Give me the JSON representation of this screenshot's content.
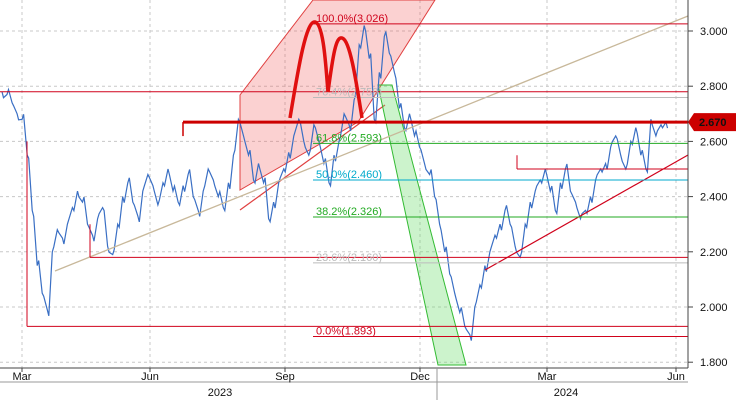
{
  "chart_data": {
    "type": "line",
    "title": "",
    "xlabel": "",
    "ylabel": "",
    "ylim": [
      1.79,
      3.09
    ],
    "x_ticks": [
      "Mar",
      "Jun",
      "Sep",
      "Dec",
      "Mar",
      "Jun"
    ],
    "year_labels": [
      "2023",
      "2024"
    ],
    "y_ticks": [
      "1.800",
      "2.000",
      "2.200",
      "2.400",
      "2.600",
      "2.800",
      "3.000"
    ],
    "last_value_badge": "2.670",
    "grid": true,
    "fibonacci_levels": [
      {
        "label": "100.0%(3.026)",
        "value": 3.026,
        "color": "#d0021b"
      },
      {
        "label": "76.4%(2.759)",
        "value": 2.759,
        "color": "#bbbbbb"
      },
      {
        "label": "61.8%(2.593)",
        "value": 2.593,
        "color": "#22aa22"
      },
      {
        "label": "50.0%(2.460)",
        "value": 2.46,
        "color": "#00aacc"
      },
      {
        "label": "38.2%(2.326)",
        "value": 2.326,
        "color": "#22aa22"
      },
      {
        "label": "23.6%(2.160)",
        "value": 2.16,
        "color": "#bbbbbb"
      },
      {
        "label": "0.0%(1.893)",
        "value": 1.893,
        "color": "#d0021b"
      }
    ],
    "horizontal_levels": [
      {
        "value": 2.78,
        "color": "#d0021b"
      },
      {
        "value": 2.67,
        "color": "#cc0000",
        "emphasis": true
      },
      {
        "value": 2.18,
        "color": "#d0021b"
      },
      {
        "value": 1.93,
        "color": "#d0021b"
      },
      {
        "value": 2.5,
        "color": "#d0021b"
      }
    ],
    "series": [
      {
        "values": [
          2.78,
          2.77,
          2.74,
          2.7,
          2.68,
          2.55,
          2.35,
          2.15,
          2.05,
          1.99,
          2.2,
          2.28,
          2.25,
          2.3,
          2.36,
          2.42,
          2.38,
          2.3,
          2.26,
          2.32,
          2.36,
          2.22,
          2.19,
          2.3,
          2.4,
          2.45,
          2.38,
          2.33,
          2.42,
          2.48,
          2.44,
          2.37,
          2.45,
          2.5,
          2.42,
          2.38,
          2.44,
          2.48,
          2.4,
          2.35,
          2.42,
          2.5,
          2.46,
          2.4,
          2.36,
          2.45,
          2.55,
          2.68,
          2.62,
          2.55,
          2.46,
          2.52,
          2.45,
          2.32,
          2.38,
          2.45,
          2.5,
          2.56,
          2.62,
          2.68,
          2.6,
          2.55,
          2.66,
          2.6,
          2.52,
          2.45,
          2.55,
          2.6,
          2.7,
          2.66,
          2.75,
          2.95,
          3.02,
          2.9,
          2.68,
          2.85,
          2.98,
          2.92,
          2.85,
          2.72,
          2.65,
          2.7,
          2.62,
          2.58,
          2.52,
          2.48,
          2.4,
          2.3,
          2.2,
          2.12,
          2.05,
          1.98,
          1.93,
          1.9,
          2.0,
          2.08,
          2.15,
          2.2,
          2.26,
          2.3,
          2.35,
          2.3,
          2.22,
          2.18,
          2.3,
          2.38,
          2.42,
          2.46,
          2.5,
          2.42,
          2.35,
          2.45,
          2.5,
          2.42,
          2.38,
          2.32,
          2.35,
          2.4,
          2.46,
          2.5,
          2.52,
          2.58,
          2.62,
          2.55,
          2.5,
          2.6,
          2.65,
          2.55,
          2.5,
          2.68,
          2.62,
          2.66,
          2.67
        ]
      }
    ]
  }
}
